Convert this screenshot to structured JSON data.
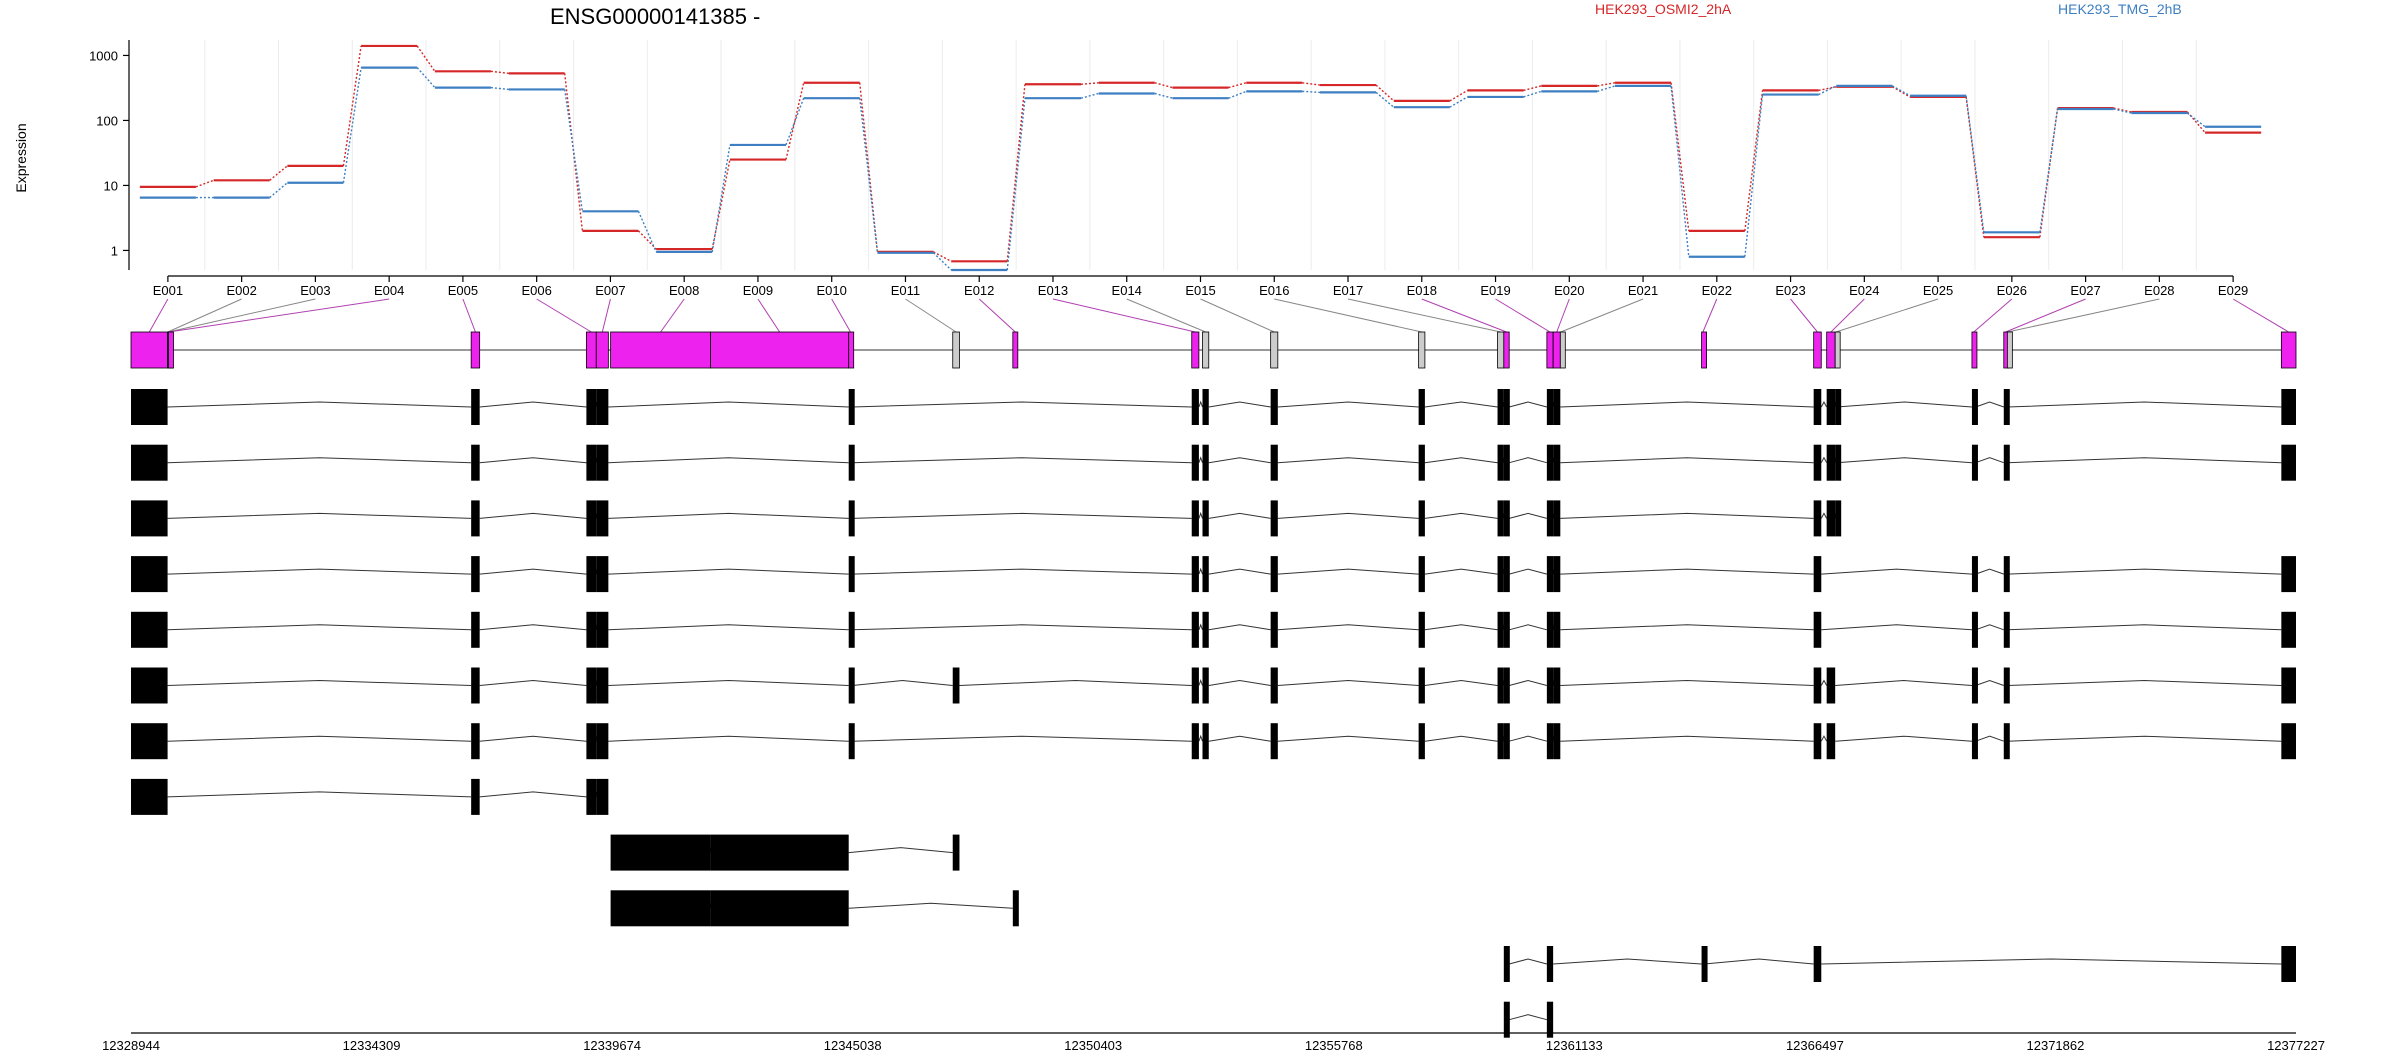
{
  "chart_data": {
    "type": "line",
    "title": "ENSG00000141385 -",
    "ylabel": "Expression",
    "y_scale": "log",
    "ylim": [
      0.5,
      1500
    ],
    "y_ticks": [
      "1",
      "10",
      "100",
      "1000"
    ],
    "exon_labels": [
      "E001",
      "E002",
      "E003",
      "E004",
      "E005",
      "E006",
      "E007",
      "E008",
      "E009",
      "E010",
      "E011",
      "E012",
      "E013",
      "E014",
      "E015",
      "E016",
      "E017",
      "E018",
      "E019",
      "E020",
      "E021",
      "E022",
      "E023",
      "E024",
      "E025",
      "E026",
      "E027",
      "E028",
      "E029"
    ],
    "x_ticks": [
      "12328944",
      "12334309",
      "12339674",
      "12345038",
      "12350403",
      "12355768",
      "12361133",
      "12366497",
      "12371862",
      "12377227"
    ],
    "series": [
      {
        "name": "HEK293_OSMI2_2hA",
        "color": "#d62728",
        "values": [
          9.5,
          12,
          20,
          1400,
          570,
          530,
          2,
          1.05,
          25,
          380,
          0.95,
          0.68,
          360,
          380,
          320,
          380,
          350,
          200,
          290,
          340,
          380,
          2,
          290,
          330,
          230,
          1.6,
          155,
          135,
          65
        ]
      },
      {
        "name": "HEK293_TMG_2hB",
        "color": "#3d7fc2",
        "values": [
          6.5,
          6.5,
          11,
          650,
          320,
          300,
          4,
          0.95,
          42,
          220,
          0.92,
          0.5,
          220,
          260,
          220,
          280,
          270,
          160,
          230,
          280,
          340,
          0.8,
          250,
          340,
          240,
          1.9,
          150,
          130,
          80
        ]
      }
    ],
    "exon_colors": {
      "differential": "#ee22ee",
      "other": "#cccccc",
      "transcript": "#000000"
    }
  }
}
